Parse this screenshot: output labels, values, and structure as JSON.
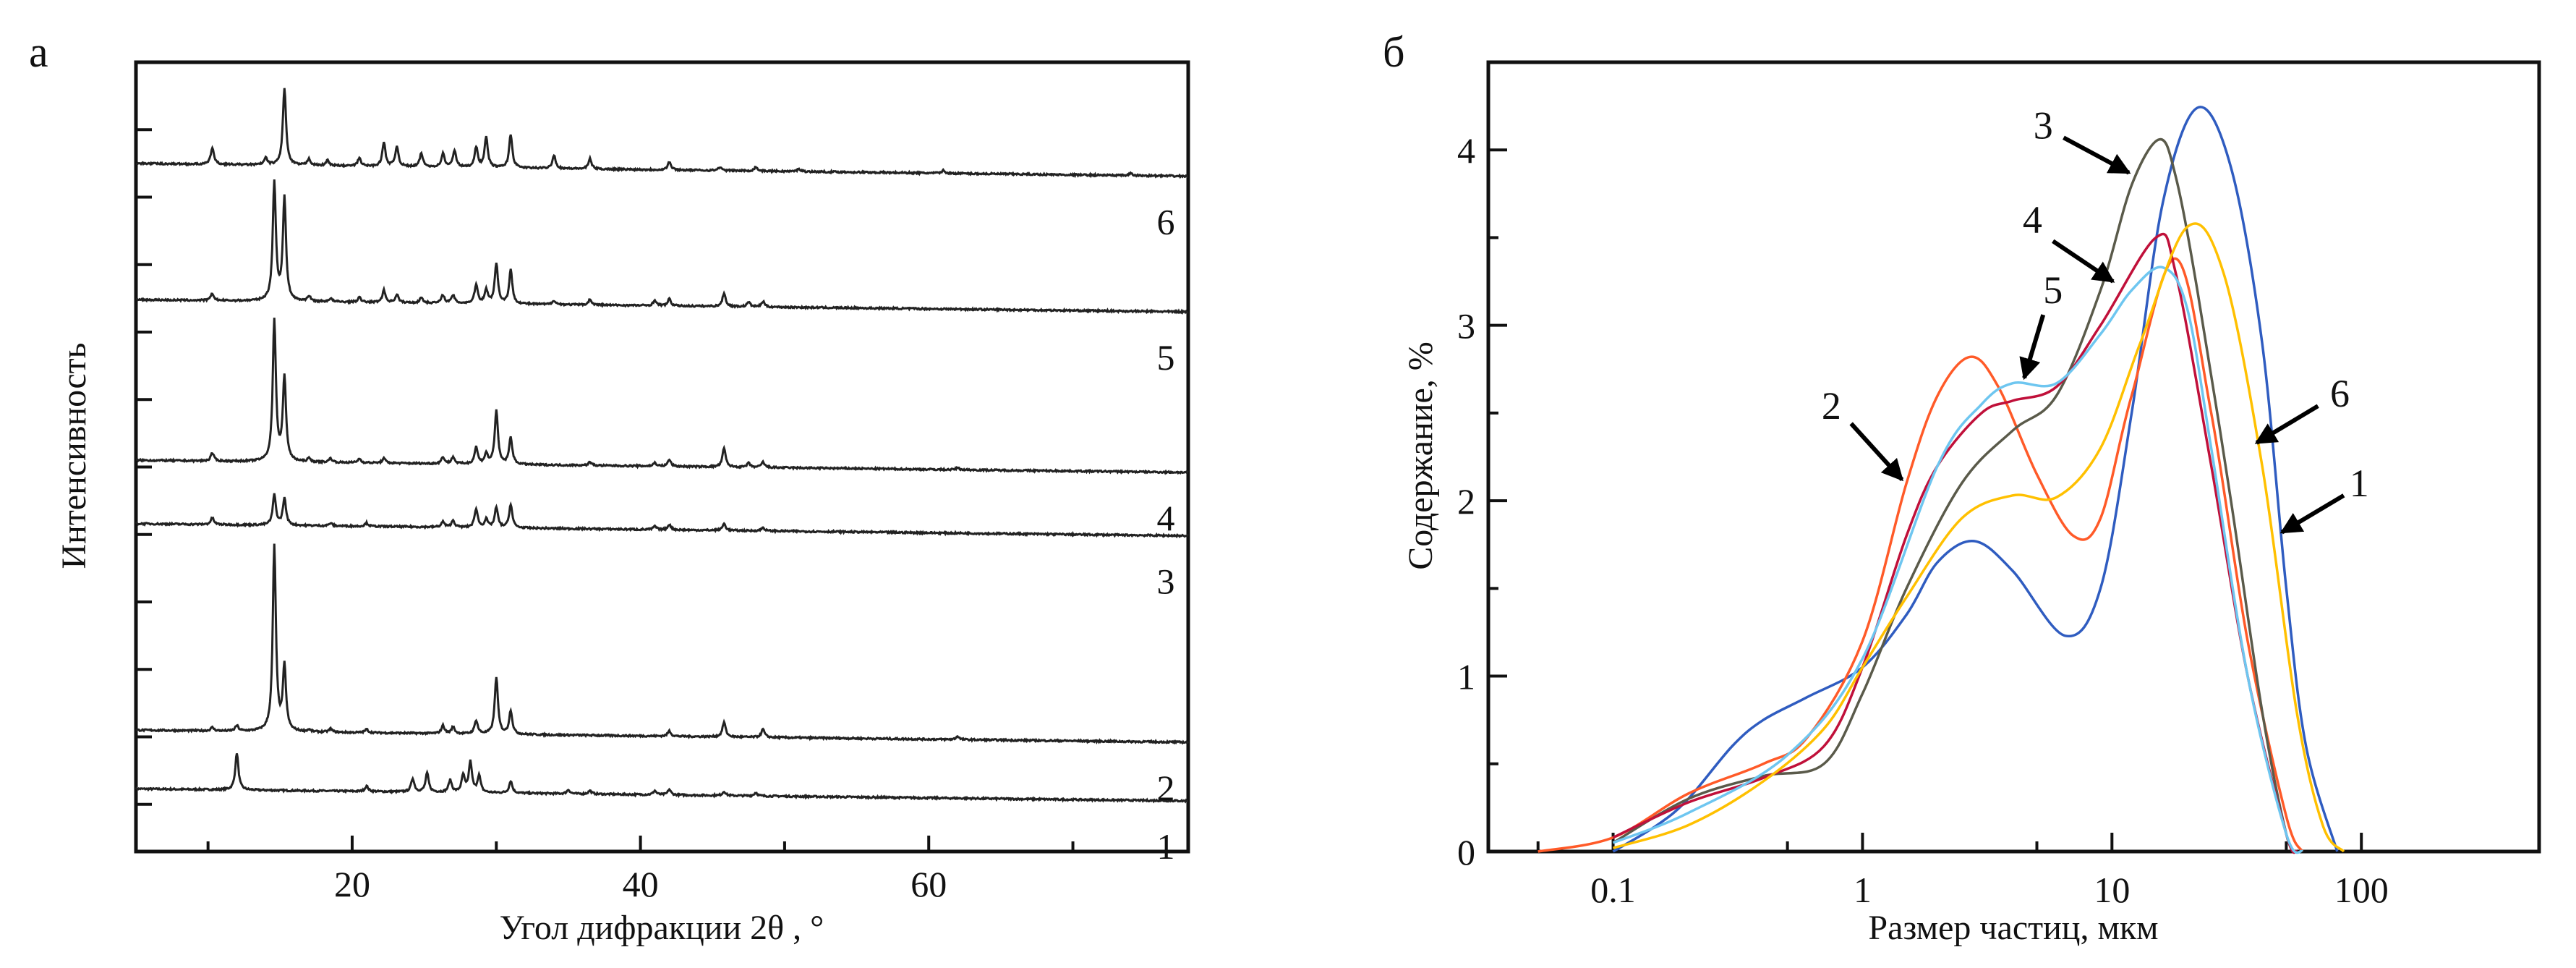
{
  "chart_data": [
    {
      "type": "line",
      "panel_label": "а",
      "xlabel": "Угол дифракции 2θ , °",
      "ylabel": "Интенсивность",
      "xlim": [
        5,
        78
      ],
      "ylim": [
        0.3,
        12
      ],
      "xticks": [
        20,
        40,
        60
      ],
      "xtick_labels": [
        "20",
        "40",
        "60"
      ],
      "x_minor_ticks": [
        10,
        30,
        50,
        70
      ],
      "yticks": [
        1,
        2,
        3,
        4,
        5,
        6,
        7,
        8,
        9,
        10,
        11
      ],
      "ytick_labels": [],
      "grid": false,
      "series": [
        {
          "name": "1",
          "baseline": [
            1.23,
            1.05
          ],
          "peaks": [
            [
              12,
              0.55
            ],
            [
              21,
              0.08
            ],
            [
              24.2,
              0.2
            ],
            [
              25.2,
              0.28
            ],
            [
              26.8,
              0.18
            ],
            [
              27.7,
              0.25
            ],
            [
              28.2,
              0.45
            ],
            [
              28.8,
              0.25
            ],
            [
              31,
              0.18
            ],
            [
              35,
              0.06
            ],
            [
              36.5,
              0.05
            ],
            [
              41,
              0.06
            ],
            [
              42,
              0.08
            ],
            [
              45.8,
              0.06
            ],
            [
              48,
              0.05
            ]
          ]
        },
        {
          "name": "2",
          "baseline": [
            2.1,
            1.92
          ],
          "peaks": [
            [
              10.3,
              0.05
            ],
            [
              12,
              0.08
            ],
            [
              14.6,
              2.75
            ],
            [
              15.3,
              0.95
            ],
            [
              17,
              0.03
            ],
            [
              18.5,
              0.05
            ],
            [
              21,
              0.05
            ],
            [
              26.3,
              0.12
            ],
            [
              27,
              0.1
            ],
            [
              28.6,
              0.2
            ],
            [
              30,
              0.85
            ],
            [
              31,
              0.35
            ],
            [
              42,
              0.08
            ],
            [
              45.8,
              0.22
            ],
            [
              48.5,
              0.12
            ],
            [
              62,
              0.05
            ]
          ]
        },
        {
          "name": "3",
          "baseline": [
            5.16,
            4.98
          ],
          "peaks": [
            [
              10.3,
              0.1
            ],
            [
              14.6,
              0.45
            ],
            [
              15.3,
              0.4
            ],
            [
              18.5,
              0.04
            ],
            [
              21,
              0.05
            ],
            [
              26.3,
              0.08
            ],
            [
              27,
              0.1
            ],
            [
              28.6,
              0.28
            ],
            [
              29.3,
              0.12
            ],
            [
              30,
              0.3
            ],
            [
              31,
              0.35
            ],
            [
              41,
              0.05
            ],
            [
              42,
              0.08
            ],
            [
              45.8,
              0.1
            ],
            [
              48.5,
              0.05
            ]
          ]
        },
        {
          "name": "4",
          "baseline": [
            6.1,
            5.92
          ],
          "peaks": [
            [
              10.3,
              0.12
            ],
            [
              14.6,
              2.1
            ],
            [
              15.3,
              1.25
            ],
            [
              17,
              0.05
            ],
            [
              18.5,
              0.06
            ],
            [
              20.5,
              0.06
            ],
            [
              22.2,
              0.07
            ],
            [
              26.3,
              0.1
            ],
            [
              27,
              0.1
            ],
            [
              28.6,
              0.25
            ],
            [
              29.3,
              0.15
            ],
            [
              30,
              0.8
            ],
            [
              31,
              0.4
            ],
            [
              36.5,
              0.05
            ],
            [
              41,
              0.05
            ],
            [
              42,
              0.1
            ],
            [
              45.8,
              0.28
            ],
            [
              47.5,
              0.06
            ],
            [
              48.5,
              0.08
            ],
            [
              62,
              0.03
            ]
          ]
        },
        {
          "name": "5",
          "baseline": [
            8.48,
            8.3
          ],
          "peaks": [
            [
              10.3,
              0.1
            ],
            [
              14.6,
              1.75
            ],
            [
              15.3,
              1.52
            ],
            [
              17,
              0.08
            ],
            [
              18.5,
              0.05
            ],
            [
              20.5,
              0.07
            ],
            [
              22.2,
              0.18
            ],
            [
              23.1,
              0.12
            ],
            [
              24.8,
              0.08
            ],
            [
              26.3,
              0.12
            ],
            [
              27,
              0.12
            ],
            [
              28.6,
              0.28
            ],
            [
              29.3,
              0.2
            ],
            [
              30,
              0.6
            ],
            [
              31,
              0.5
            ],
            [
              34,
              0.06
            ],
            [
              36.5,
              0.08
            ],
            [
              41,
              0.08
            ],
            [
              42,
              0.1
            ],
            [
              45.8,
              0.2
            ],
            [
              47.5,
              0.07
            ],
            [
              48.5,
              0.08
            ]
          ]
        },
        {
          "name": "6",
          "baseline": [
            10.5,
            10.31
          ],
          "peaks": [
            [
              10.3,
              0.25
            ],
            [
              14,
              0.1
            ],
            [
              15.3,
              1.15
            ],
            [
              17,
              0.1
            ],
            [
              18.3,
              0.08
            ],
            [
              20.5,
              0.12
            ],
            [
              22.2,
              0.35
            ],
            [
              23.1,
              0.3
            ],
            [
              24.8,
              0.2
            ],
            [
              26.3,
              0.2
            ],
            [
              27.1,
              0.25
            ],
            [
              28.6,
              0.3
            ],
            [
              29.3,
              0.45
            ],
            [
              31,
              0.5
            ],
            [
              34,
              0.2
            ],
            [
              36.5,
              0.15
            ],
            [
              42,
              0.12
            ],
            [
              45.5,
              0.05
            ],
            [
              48,
              0.06
            ],
            [
              51,
              0.04
            ],
            [
              61,
              0.04
            ],
            [
              74,
              0.03
            ]
          ]
        }
      ]
    },
    {
      "type": "line",
      "panel_label": "б",
      "xlabel": "Размер частиц, мкм",
      "ylabel": "Содержание, %",
      "xscale": "log",
      "xlim": [
        0.0316,
        516
      ],
      "ylim": [
        0,
        4.5
      ],
      "xticks": [
        0.1,
        1,
        10,
        100
      ],
      "xtick_labels": [
        "0.1",
        "1",
        "10",
        "100"
      ],
      "x_minor_ticks": [
        0.05,
        0.5,
        5,
        50
      ],
      "yticks": [
        0,
        1,
        2,
        3,
        4
      ],
      "ytick_labels": [
        "0",
        "1",
        "2",
        "3",
        "4"
      ],
      "y_minor_ticks": [
        0.5,
        1.5,
        2.5,
        3.5
      ],
      "grid": false,
      "series": [
        {
          "name": "1",
          "color": "#2f5cc0",
          "x": [
            0.1,
            0.15,
            0.2,
            0.3,
            0.4,
            0.6,
            1,
            1.5,
            2,
            2.8,
            4,
            6.5,
            9,
            12,
            16,
            22,
            30,
            40,
            50,
            60,
            80
          ],
          "y": [
            0,
            0.15,
            0.3,
            0.6,
            0.75,
            0.88,
            1.05,
            1.35,
            1.65,
            1.77,
            1.6,
            1.23,
            1.5,
            2.5,
            3.7,
            4.24,
            3.9,
            2.9,
            1.5,
            0.6,
            0
          ]
        },
        {
          "name": "2",
          "color": "#ff5a28",
          "x": [
            0.05,
            0.1,
            0.2,
            0.4,
            0.6,
            1,
            1.5,
            2,
            2.7,
            3.5,
            5,
            7,
            9,
            12,
            18,
            25,
            35,
            50,
            58
          ],
          "y": [
            0,
            0.08,
            0.33,
            0.5,
            0.65,
            1.2,
            2.1,
            2.6,
            2.82,
            2.65,
            2.15,
            1.8,
            1.9,
            2.6,
            3.38,
            2.5,
            1.2,
            0.2,
            0
          ]
        },
        {
          "name": "3",
          "color": "#5a5a4a",
          "x": [
            0.1,
            0.2,
            0.4,
            0.7,
            1,
            1.5,
            2.5,
            4,
            6,
            9,
            12,
            15.5,
            18,
            22,
            30,
            40,
            50,
            55
          ],
          "y": [
            0.05,
            0.3,
            0.43,
            0.5,
            0.9,
            1.5,
            2.1,
            2.4,
            2.6,
            3.2,
            3.8,
            4.06,
            3.85,
            3.2,
            2.0,
            0.8,
            0.1,
            0
          ]
        },
        {
          "name": "4",
          "color": "#c0103a",
          "x": [
            0.1,
            0.2,
            0.4,
            0.7,
            1,
            1.5,
            2,
            3,
            4,
            6,
            9,
            15,
            18,
            25,
            35,
            50,
            55
          ],
          "y": [
            0.08,
            0.28,
            0.42,
            0.6,
            1.05,
            1.8,
            2.2,
            2.5,
            2.57,
            2.65,
            3.0,
            3.5,
            3.3,
            2.2,
            1.0,
            0.1,
            0
          ]
        },
        {
          "name": "5",
          "color": "#6ec6f0",
          "x": [
            0.1,
            0.2,
            0.5,
            1,
            2,
            3,
            4,
            6,
            9,
            12,
            16,
            20,
            25,
            35,
            50,
            58
          ],
          "y": [
            0.05,
            0.22,
            0.55,
            1.1,
            2.2,
            2.55,
            2.67,
            2.67,
            2.95,
            3.2,
            3.33,
            3.1,
            2.3,
            1.0,
            0.1,
            0
          ]
        },
        {
          "name": "6",
          "color": "#ffc000",
          "x": [
            0.1,
            0.2,
            0.4,
            0.7,
            1,
            1.5,
            2.5,
            4,
            6,
            9,
            13,
            20,
            28,
            40,
            55,
            70,
            85
          ],
          "y": [
            0.02,
            0.15,
            0.4,
            0.7,
            1.05,
            1.45,
            1.9,
            2.03,
            2.02,
            2.3,
            2.9,
            3.56,
            3.3,
            2.2,
            0.8,
            0.15,
            0
          ]
        }
      ],
      "annotations": [
        {
          "text": "3",
          "at": [
            5.3,
            4.14
          ],
          "arrow_from": [
            6.4,
            4.07
          ],
          "arrow_to": [
            11.7,
            3.87
          ]
        },
        {
          "text": "4",
          "at": [
            4.8,
            3.6
          ],
          "arrow_from": [
            5.8,
            3.48
          ],
          "arrow_to": [
            10.1,
            3.25
          ]
        },
        {
          "text": "5",
          "at": [
            5.8,
            3.2
          ],
          "arrow_from": [
            5.3,
            3.06
          ],
          "arrow_to": [
            4.45,
            2.7
          ]
        },
        {
          "text": "2",
          "at": [
            0.75,
            2.54
          ],
          "arrow_from": [
            0.9,
            2.44
          ],
          "arrow_to": [
            1.44,
            2.12
          ]
        },
        {
          "text": "6",
          "at": [
            82,
            2.61
          ],
          "arrow_from": [
            67,
            2.54
          ],
          "arrow_to": [
            38,
            2.33
          ]
        },
        {
          "text": "1",
          "at": [
            98,
            2.1
          ],
          "arrow_from": [
            85,
            2.03
          ],
          "arrow_to": [
            48,
            1.82
          ]
        }
      ]
    }
  ]
}
